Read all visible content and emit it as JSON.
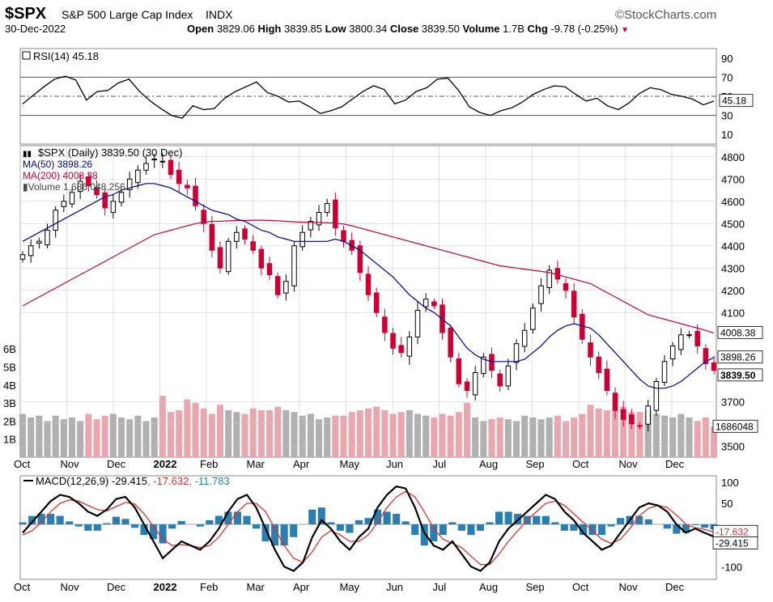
{
  "header": {
    "symbol": "$SPX",
    "name": "S&P 500 Large Cap Index",
    "exchange": "INDX",
    "date": "30-Dec-2022",
    "watermark": "©StockCharts.com",
    "open_label": "Open",
    "open": "3829.06",
    "high_label": "High",
    "high": "3839.85",
    "low_label": "Low",
    "low": "3800.34",
    "close_label": "Close",
    "close": "3839.50",
    "volume_label": "Volume",
    "volume": "1.7B",
    "chg_label": "Chg",
    "chg": "-9.78 (-0.25%)"
  },
  "colors": {
    "up": "#000000",
    "down": "#cc0033",
    "ma50": "#000099",
    "ma200": "#cc0033",
    "vol_up": "#b0b0b0",
    "vol_down": "#e8a6ae",
    "hist": "#2a7fb0",
    "grid": "#cccccc"
  },
  "chart_data": [
    {
      "type": "line",
      "panel": "rsi",
      "legend": "RSI(14) 45.18",
      "yticks": [
        90,
        70,
        50,
        30,
        10
      ],
      "ylim": [
        0,
        100
      ],
      "bands": [
        30,
        70
      ],
      "last_label": "45.18",
      "series": [
        {
          "name": "RSI(14)",
          "values": [
            42,
            51,
            60,
            68,
            71,
            67,
            46,
            55,
            56,
            64,
            68,
            55,
            45,
            37,
            30,
            27,
            40,
            36,
            37,
            48,
            55,
            60,
            65,
            54,
            50,
            44,
            45,
            39,
            32,
            35,
            39,
            47,
            55,
            61,
            57,
            42,
            46,
            55,
            59,
            68,
            69,
            56,
            39,
            33,
            30,
            35,
            38,
            44,
            52,
            57,
            61,
            60,
            52,
            45,
            48,
            40,
            36,
            43,
            53,
            59,
            57,
            52,
            50,
            47,
            41,
            45
          ]
        }
      ]
    },
    {
      "type": "candlestick",
      "panel": "price",
      "legend": "$SPX (Daily) 3839.50 (30 Dec)",
      "ylim": [
        3450,
        4850
      ],
      "yticks": [
        4800,
        4700,
        4600,
        4500,
        4400,
        4300,
        4200,
        4100,
        3700,
        3600,
        3500
      ],
      "xticks": [
        "Oct",
        "Nov",
        "Dec",
        "2022",
        "Feb",
        "Mar",
        "Apr",
        "May",
        "Jun",
        "Jul",
        "Aug",
        "Sep",
        "Oct",
        "Nov",
        "Dec"
      ],
      "close": [
        4360,
        4400,
        4420,
        4470,
        4560,
        4600,
        4640,
        4690,
        4670,
        4630,
        4570,
        4600,
        4640,
        4700,
        4740,
        4770,
        4790,
        4780,
        4720,
        4680,
        4660,
        4580,
        4500,
        4380,
        4300,
        4420,
        4460,
        4430,
        4380,
        4300,
        4270,
        4180,
        4240,
        4400,
        4460,
        4510,
        4550,
        4590,
        4480,
        4420,
        4380,
        4280,
        4180,
        4100,
        4010,
        3940,
        3920,
        3990,
        4110,
        4160,
        4130,
        4010,
        3900,
        3780,
        3750,
        3830,
        3900,
        3840,
        3770,
        3860,
        3960,
        4020,
        4120,
        4220,
        4290,
        4250,
        4200,
        4080,
        3980,
        3900,
        3830,
        3750,
        3660,
        3620,
        3600,
        3590,
        3680,
        3790,
        3880,
        3950,
        4000,
        4000,
        3950,
        3870,
        3840
      ],
      "ma50": [
        4420,
        4440,
        4460,
        4480,
        4500,
        4520,
        4540,
        4560,
        4580,
        4600,
        4620,
        4630,
        4650,
        4660,
        4670,
        4680,
        4680,
        4670,
        4660,
        4640,
        4620,
        4600,
        4580,
        4560,
        4550,
        4540,
        4520,
        4510,
        4490,
        4470,
        4460,
        4440,
        4430,
        4420,
        4420,
        4420,
        4420,
        4420,
        4430,
        4420,
        4400,
        4380,
        4350,
        4320,
        4290,
        4260,
        4220,
        4180,
        4150,
        4120,
        4100,
        4070,
        4040,
        3990,
        3940,
        3910,
        3890,
        3880,
        3880,
        3880,
        3880,
        3890,
        3920,
        3950,
        3990,
        4020,
        4040,
        4050,
        4040,
        4030,
        4000,
        3960,
        3920,
        3880,
        3840,
        3800,
        3770,
        3760,
        3760,
        3770,
        3790,
        3820,
        3850,
        3880,
        3898
      ],
      "ma200": [
        4130,
        4150,
        4170,
        4190,
        4210,
        4230,
        4250,
        4270,
        4290,
        4310,
        4330,
        4350,
        4370,
        4390,
        4410,
        4430,
        4450,
        4460,
        4470,
        4480,
        4490,
        4500,
        4505,
        4510,
        4510,
        4512,
        4514,
        4514,
        4515,
        4515,
        4514,
        4512,
        4510,
        4508,
        4506,
        4505,
        4504,
        4503,
        4502,
        4498,
        4490,
        4480,
        4470,
        4460,
        4450,
        4440,
        4430,
        4420,
        4410,
        4400,
        4390,
        4380,
        4370,
        4360,
        4350,
        4340,
        4330,
        4320,
        4310,
        4305,
        4300,
        4295,
        4290,
        4285,
        4280,
        4270,
        4260,
        4250,
        4240,
        4230,
        4210,
        4190,
        4170,
        4150,
        4130,
        4110,
        4090,
        4080,
        4070,
        4060,
        4050,
        4040,
        4030,
        4020,
        4008
      ],
      "last_close": "3839.50",
      "ma50_last": "3898.26",
      "ma200_last": "4008.38",
      "series": [
        {
          "name": "MA(50) 3898.26"
        },
        {
          "name": "MA(200) 4008.38"
        },
        {
          "name": "Volume 1,686,048,256"
        }
      ]
    },
    {
      "type": "bar",
      "panel": "volume",
      "yticks": [
        "6B",
        "5B",
        "4B",
        "3B",
        "2B",
        "1B"
      ],
      "ylim": [
        0,
        6.5
      ],
      "last_label": "1686048",
      "values": [
        2.4,
        2.2,
        2.3,
        2.0,
        2.3,
        2.1,
        2.2,
        2.0,
        2.4,
        2.1,
        2.3,
        2.4,
        2.2,
        2.1,
        2.3,
        2.0,
        2.2,
        3.4,
        2.5,
        2.6,
        3.2,
        3.0,
        2.7,
        2.4,
        2.9,
        2.6,
        2.5,
        2.4,
        2.7,
        2.6,
        2.6,
        2.8,
        2.6,
        2.5,
        2.3,
        2.4,
        2.1,
        2.2,
        2.3,
        2.3,
        2.5,
        2.6,
        2.7,
        2.8,
        2.6,
        2.4,
        2.5,
        2.6,
        2.4,
        2.3,
        2.2,
        2.4,
        2.3,
        2.5,
        3.0,
        2.2,
        2.0,
        2.1,
        2.2,
        2.1,
        2.0,
        2.3,
        2.2,
        2.1,
        2.2,
        2.3,
        2.0,
        2.2,
        2.4,
        2.9,
        2.7,
        2.6,
        2.6,
        2.8,
        2.5,
        2.5,
        2.6,
        2.4,
        2.3,
        2.2,
        2.4,
        2.2,
        2.0,
        2.2,
        1.7
      ]
    },
    {
      "type": "line",
      "panel": "macd",
      "legend_macd": "MACD(12,26,9) -29.415",
      "legend_signal": ", -17.632",
      "legend_hist": ", -11.783",
      "yticks": [
        100,
        50,
        -50,
        -100
      ],
      "ylim": [
        -130,
        115
      ],
      "last_macd": "-29.415",
      "last_signal": "-17.632",
      "series": [
        {
          "name": "MACD",
          "values": [
            -20,
            5,
            30,
            55,
            70,
            65,
            50,
            30,
            20,
            35,
            60,
            65,
            40,
            0,
            -40,
            -80,
            -60,
            -40,
            -50,
            -60,
            -40,
            -10,
            30,
            60,
            70,
            40,
            -10,
            -60,
            -100,
            -110,
            -90,
            -30,
            10,
            -10,
            -40,
            -60,
            -30,
            -10,
            40,
            70,
            90,
            85,
            40,
            -20,
            -50,
            -60,
            -40,
            -70,
            -100,
            -110,
            -90,
            -40,
            -10,
            10,
            30,
            50,
            70,
            60,
            30,
            10,
            -20,
            -40,
            -60,
            -50,
            -20,
            10,
            40,
            50,
            45,
            30,
            0,
            -20,
            -10,
            -20,
            -29
          ]
        },
        {
          "name": "Signal",
          "values": [
            -25,
            -15,
            5,
            30,
            50,
            58,
            55,
            45,
            35,
            32,
            42,
            52,
            48,
            25,
            -5,
            -35,
            -50,
            -48,
            -50,
            -55,
            -50,
            -30,
            0,
            30,
            50,
            50,
            30,
            -10,
            -50,
            -80,
            -90,
            -65,
            -30,
            -15,
            -25,
            -40,
            -40,
            -25,
            5,
            40,
            65,
            78,
            65,
            30,
            -10,
            -35,
            -45,
            -55,
            -75,
            -95,
            -95,
            -70,
            -40,
            -15,
            10,
            30,
            50,
            55,
            45,
            25,
            5,
            -15,
            -35,
            -45,
            -35,
            -10,
            20,
            38,
            45,
            40,
            22,
            0,
            -8,
            -12,
            -18
          ]
        }
      ],
      "histogram": [
        5,
        20,
        25,
        25,
        20,
        7,
        -5,
        -15,
        -15,
        3,
        18,
        13,
        -8,
        -25,
        -35,
        -45,
        -10,
        8,
        0,
        -5,
        10,
        20,
        30,
        30,
        20,
        -10,
        -40,
        -50,
        -50,
        -30,
        0,
        35,
        40,
        5,
        -15,
        -20,
        10,
        15,
        35,
        30,
        25,
        7,
        -25,
        -50,
        -40,
        -25,
        5,
        -15,
        -25,
        -15,
        5,
        30,
        30,
        25,
        20,
        20,
        20,
        5,
        -15,
        -15,
        -25,
        -25,
        -25,
        -5,
        15,
        20,
        20,
        12,
        0,
        -10,
        -22,
        -20,
        -2,
        -8,
        -12
      ]
    }
  ]
}
